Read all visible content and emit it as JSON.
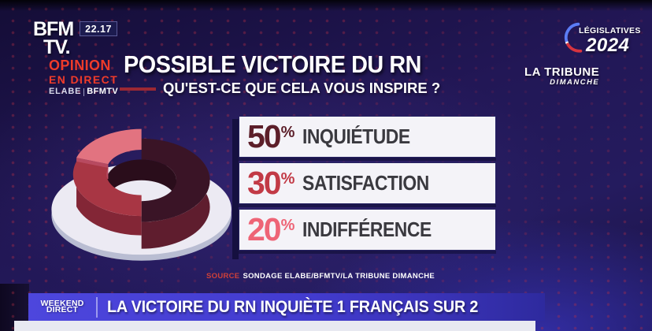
{
  "header": {
    "channel": {
      "line1": "BFM",
      "line2": "TV.",
      "time": "22.17"
    },
    "opinion_badge": {
      "line1": "OPINION",
      "line2": "EN DIRECT",
      "partner1": "ELABE",
      "partner2": "BFMTV"
    },
    "title": "POSSIBLE VICTOIRE DU RN",
    "subtitle": "QU'EST-CE QUE CELA VOUS INSPIRE ?",
    "legislatives_badge": {
      "line1": "LÉGISLATIVES",
      "line2": "2024"
    },
    "tribune_logo": {
      "line1": "LA TRIBUNE",
      "line2": "DIMANCHE"
    }
  },
  "chart_data": {
    "type": "pie",
    "title": "Possible victoire du RN — Qu'est-ce que cela vous inspire ?",
    "categories": [
      "Inquiétude",
      "Satisfaction",
      "Indifférence"
    ],
    "values": [
      50,
      30,
      20
    ],
    "colors": [
      "#3a1426",
      "#a83644",
      "#e27380"
    ],
    "legend_position": "right",
    "style": "3d-donut"
  },
  "results": [
    {
      "value": "50",
      "unit": "%",
      "label": "INQUIÉTUDE",
      "color": "#5c1e29"
    },
    {
      "value": "30",
      "unit": "%",
      "label": "SATISFACTION",
      "color": "#c23a46"
    },
    {
      "value": "20",
      "unit": "%",
      "label": "INDIFFÉRENCE",
      "color": "#ee6476"
    }
  ],
  "source": {
    "prefix": "SOURCE",
    "text": "SONDAGE ELABE/BFMTV/LA TRIBUNE DIMANCHE"
  },
  "ticker": {
    "program": {
      "line1": "WEEKEND",
      "line2": "DIRECT"
    },
    "headline": "LA VICTOIRE DU RN INQUIÈTE 1 FRANÇAIS SUR 2"
  },
  "theme": {
    "accent_red": "#ef3b2a",
    "banner_blue": "#423bce",
    "background_navy": "#221756",
    "dot_pattern_red": "#ba3046",
    "box_white": "#f4f3f8"
  }
}
